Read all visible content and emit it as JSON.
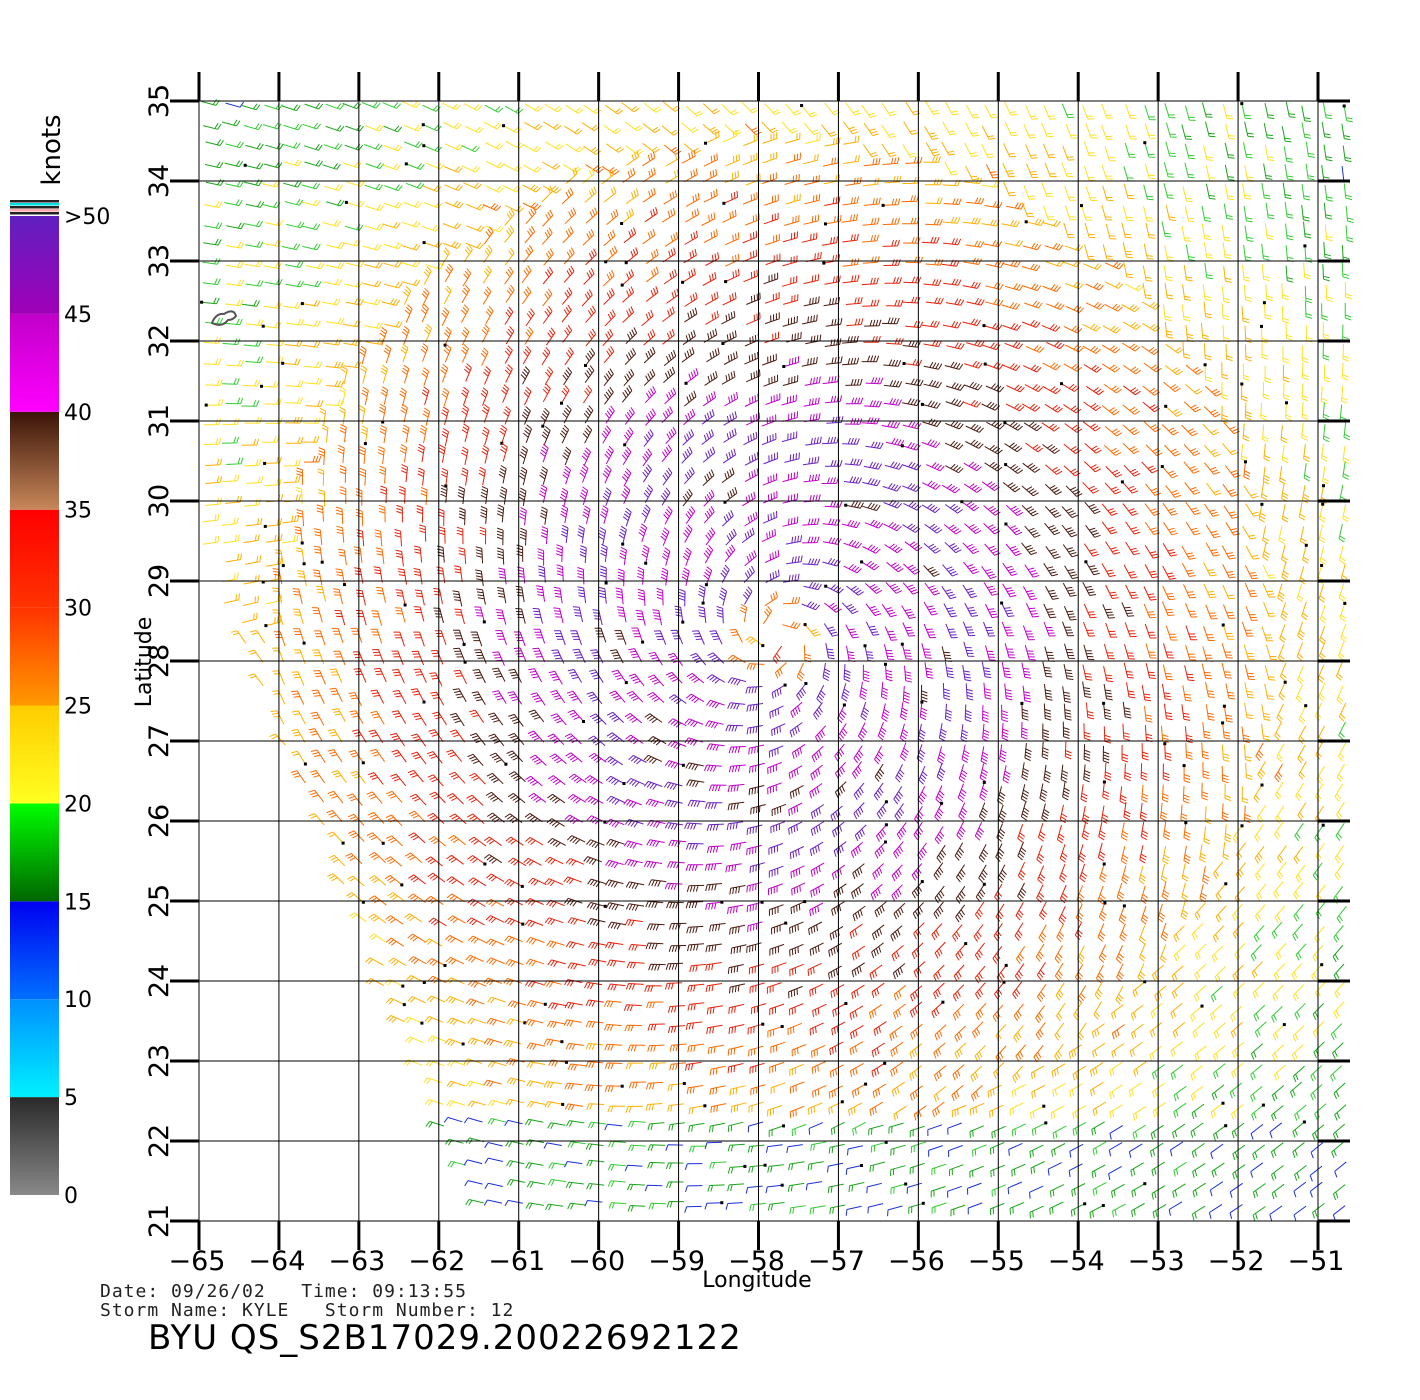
{
  "map": {
    "lon_range": [
      -65,
      -51
    ],
    "lat_range": [
      21,
      35
    ],
    "lon_ticks": [
      -65,
      -64,
      -63,
      -62,
      -61,
      -60,
      -59,
      -58,
      -57,
      -56,
      -55,
      -54,
      -53,
      -52,
      -51
    ],
    "lat_ticks": [
      21,
      22,
      23,
      24,
      25,
      26,
      27,
      28,
      29,
      30,
      31,
      32,
      33,
      34,
      35
    ],
    "lon_tick_labels": [
      "−65",
      "−64",
      "−63",
      "−62",
      "−61",
      "−60",
      "−59",
      "−58",
      "−57",
      "−56",
      "−55",
      "−54",
      "−53",
      "−52",
      "−51"
    ],
    "lat_tick_labels": [
      "21",
      "22",
      "23",
      "24",
      "25",
      "26",
      "27",
      "28",
      "29",
      "30",
      "31",
      "32",
      "33",
      "34",
      "35"
    ],
    "xlabel": "Longitude",
    "ylabel": "Latitude",
    "grid": true,
    "storm_center": {
      "lon": -57.8,
      "lat": 28.3
    },
    "island_marker": {
      "lon": -64.7,
      "lat": 32.3
    }
  },
  "colorbar": {
    "units": "knots",
    "tick_labels": [
      "0",
      "5",
      "10",
      "15",
      "20",
      "25",
      "30",
      "35",
      "40",
      "45",
      ">50"
    ],
    "bands": [
      {
        "min": 0,
        "max": 5,
        "colors": [
          "#888888",
          "#2a2a2a"
        ]
      },
      {
        "min": 5,
        "max": 10,
        "colors": [
          "#00f0ff",
          "#0090ff"
        ]
      },
      {
        "min": 10,
        "max": 15,
        "colors": [
          "#0070ff",
          "#0000f0"
        ]
      },
      {
        "min": 15,
        "max": 20,
        "colors": [
          "#006600",
          "#00ff00"
        ]
      },
      {
        "min": 20,
        "max": 25,
        "colors": [
          "#ffff22",
          "#ffcc00"
        ]
      },
      {
        "min": 25,
        "max": 30,
        "colors": [
          "#ff9900",
          "#ff3300"
        ]
      },
      {
        "min": 30,
        "max": 35,
        "colors": [
          "#ff3300",
          "#ff0000"
        ]
      },
      {
        "min": 35,
        "max": 40,
        "colors": [
          "#c8875a",
          "#3a1408"
        ]
      },
      {
        "min": 40,
        "max": 45,
        "colors": [
          "#ff00ff",
          "#c000c8"
        ]
      },
      {
        "min": 45,
        "max": 50,
        "colors": [
          "#a000b8",
          "#6020c0"
        ]
      }
    ]
  },
  "info": {
    "date_line": "Date: 09/26/02   Time: 09:13:55",
    "storm_line": "Storm Name: KYLE   Storm Number: 12"
  },
  "footer": {
    "title": "BYU QS_S2B17029.20022692122"
  }
}
